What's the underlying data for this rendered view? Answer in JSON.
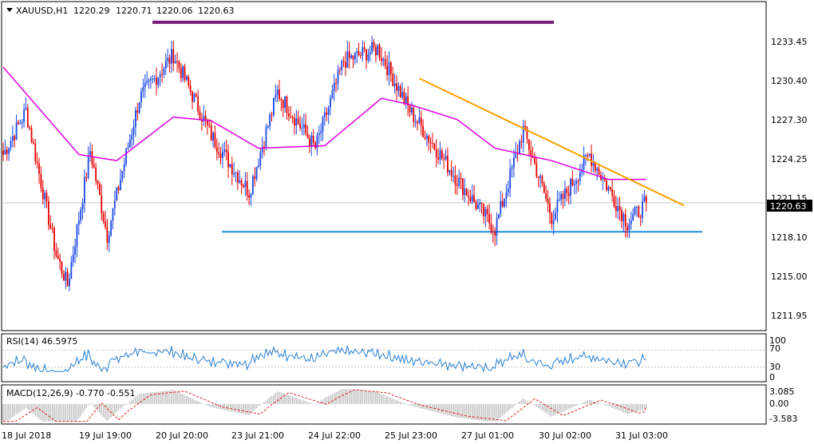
{
  "header": {
    "symbol": "XAUUSD,H1",
    "open": "1220.29",
    "high": "1220.71",
    "low": "1220.06",
    "close": "1220.63"
  },
  "price_panel": {
    "y_ticks": [
      "1233.45",
      "1230.40",
      "1227.30",
      "1224.25",
      "1221.15",
      "1218.10",
      "1215.00",
      "1211.95"
    ],
    "current_price_label": "1220.63",
    "colors": {
      "up": "#1a47e6",
      "down": "#e60000",
      "ma": "#e000e0",
      "resistance": "#7a1a7a",
      "support": "#2090e0",
      "trendline": "#f5a000"
    }
  },
  "rsi_panel": {
    "label": "RSI(14) 46.5975",
    "y_ticks": [
      "100",
      "70",
      "30",
      "0"
    ],
    "color": "#2a7fd0"
  },
  "macd_panel": {
    "label": "MACD(12,26,9) -0.770 -0.551",
    "y_ticks": [
      "3.085",
      "0.00",
      "-3.583"
    ],
    "signal_color": "#e02020"
  },
  "x_axis": {
    "labels": [
      "18 Jul 2018",
      "19 Jul 19:00",
      "20 Jul 20:00",
      "23 Jul 21:00",
      "24 Jul 22:00",
      "25 Jul 23:00",
      "27 Jul 01:00",
      "30 Jul 02:00",
      "31 Jul 03:00"
    ]
  },
  "chart_data": {
    "type": "candlestick",
    "symbol": "XAUUSD",
    "timeframe": "H1",
    "ylim": [
      1210.5,
      1236.5
    ],
    "y_ticks": [
      1233.45,
      1230.4,
      1227.3,
      1224.25,
      1221.15,
      1218.1,
      1215.0,
      1211.95
    ],
    "last_price": 1220.63,
    "key_prices": [
      {
        "x": 0,
        "y": 1224.5
      },
      {
        "x": 12,
        "y": 1228.0
      },
      {
        "x": 28,
        "y": 1216.5
      },
      {
        "x": 34,
        "y": 1214.0
      },
      {
        "x": 46,
        "y": 1224.8
      },
      {
        "x": 55,
        "y": 1218.0
      },
      {
        "x": 72,
        "y": 1229.0
      },
      {
        "x": 90,
        "y": 1232.5
      },
      {
        "x": 110,
        "y": 1226.0
      },
      {
        "x": 130,
        "y": 1221.5
      },
      {
        "x": 145,
        "y": 1229.5
      },
      {
        "x": 165,
        "y": 1225.0
      },
      {
        "x": 180,
        "y": 1232.0
      },
      {
        "x": 198,
        "y": 1233.0
      },
      {
        "x": 215,
        "y": 1228.0
      },
      {
        "x": 240,
        "y": 1222.5
      },
      {
        "x": 260,
        "y": 1218.5
      },
      {
        "x": 275,
        "y": 1226.5
      },
      {
        "x": 290,
        "y": 1219.5
      },
      {
        "x": 310,
        "y": 1224.5
      },
      {
        "x": 330,
        "y": 1219.0
      },
      {
        "x": 340,
        "y": 1220.6
      }
    ],
    "ma_line": [
      {
        "x": 0,
        "y": 1231.5
      },
      {
        "x": 20,
        "y": 1228.0
      },
      {
        "x": 40,
        "y": 1224.5
      },
      {
        "x": 60,
        "y": 1224.0
      },
      {
        "x": 90,
        "y": 1227.5
      },
      {
        "x": 110,
        "y": 1227.2
      },
      {
        "x": 135,
        "y": 1225.0
      },
      {
        "x": 170,
        "y": 1225.2
      },
      {
        "x": 200,
        "y": 1229.0
      },
      {
        "x": 215,
        "y": 1228.5
      },
      {
        "x": 240,
        "y": 1227.3
      },
      {
        "x": 260,
        "y": 1225.0
      },
      {
        "x": 290,
        "y": 1224.0
      },
      {
        "x": 320,
        "y": 1222.5
      }
    ],
    "resistance_line": 1235.1,
    "support_line": 1218.3,
    "trendline": [
      {
        "x": 220,
        "y": 1230.6
      },
      {
        "x": 360,
        "y": 1220.4
      }
    ],
    "rsi": {
      "value": 46.5975,
      "levels": [
        70,
        30
      ],
      "ylim": [
        0,
        100
      ]
    },
    "macd": {
      "main": -0.77,
      "signal": -0.551,
      "ylim": [
        -3.583,
        3.085
      ]
    }
  }
}
